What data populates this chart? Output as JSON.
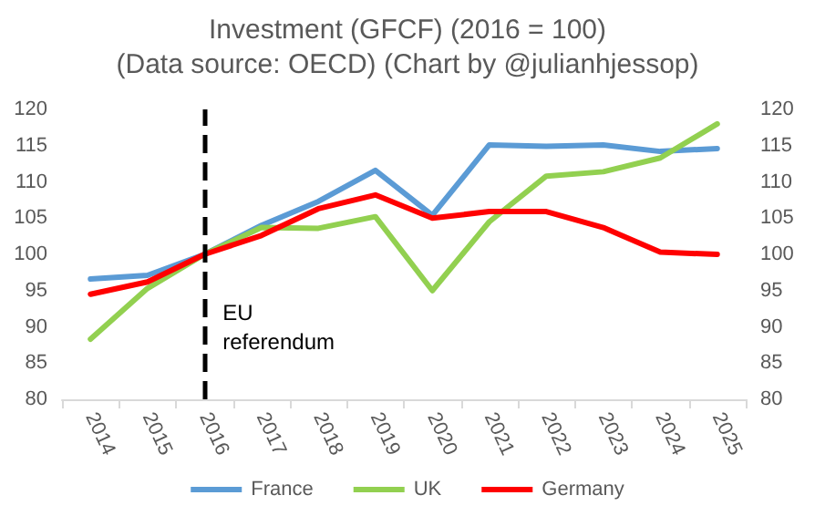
{
  "chart_data": {
    "type": "line",
    "title": "Investment (GFCF) (2016 = 100)",
    "subtitle": "(Data source: OECD) (Chart by @julianhjessop)",
    "categories": [
      "2014",
      "2015",
      "2016",
      "2017",
      "2018",
      "2019",
      "2020",
      "2021",
      "2022",
      "2023",
      "2024",
      "2025"
    ],
    "series": [
      {
        "name": "France",
        "color": "#5b9bd5",
        "values": [
          96.6,
          97.1,
          100,
          104,
          107.3,
          111.6,
          105.4,
          115.1,
          114.9,
          115.1,
          114.2,
          114.6
        ]
      },
      {
        "name": "UK",
        "color": "#92d050",
        "values": [
          88.3,
          95.3,
          100,
          103.7,
          103.6,
          105.2,
          95,
          104.5,
          110.8,
          111.4,
          113.3,
          118
        ]
      },
      {
        "name": "Germany",
        "color": "#ff0000",
        "values": [
          94.5,
          96.2,
          100,
          102.6,
          106.3,
          108.2,
          105,
          105.9,
          105.9,
          103.7,
          100.3,
          100
        ]
      }
    ],
    "ylim": [
      80,
      120
    ],
    "yticks": [
      80,
      85,
      90,
      95,
      100,
      105,
      110,
      115,
      120
    ],
    "y2lim": [
      80,
      120
    ],
    "y2ticks": [
      80,
      85,
      90,
      95,
      100,
      105,
      110,
      115,
      120
    ],
    "ref_lines": [
      {
        "axis": "x",
        "value": "2016",
        "label": "EU referendum",
        "color": "#000000",
        "line_style": "dashed"
      }
    ],
    "grid": false,
    "legend": "bottom",
    "marker": "none",
    "line_style": "solid"
  }
}
